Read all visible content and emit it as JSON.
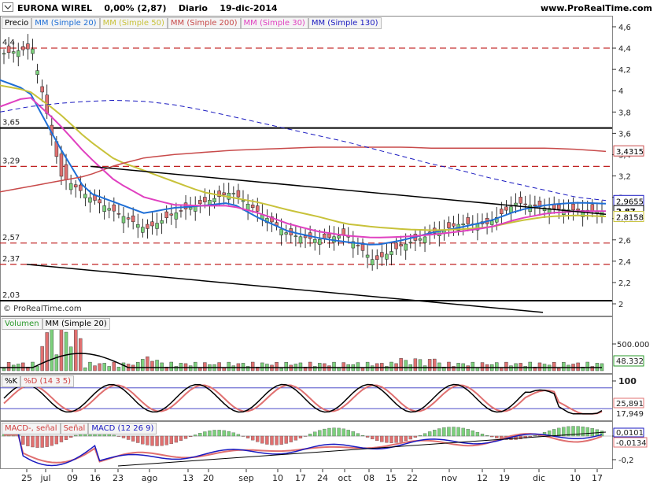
{
  "header": {
    "symbol": "EURONA WIREL",
    "change": "0,00% (2,87)",
    "period": "Diario",
    "date": "19-dic-2014",
    "site": "www.ProRealTime.com"
  },
  "copyright": "© ProRealTime.com",
  "price_panel": {
    "legend": [
      "Precio",
      "MM (Simple 20)",
      "MM (Simple 50)",
      "MM (Simple 200)",
      "MM (Simple 30)",
      "MM (Simple 130)"
    ],
    "legend_colors": [
      "#000000",
      "#1f6fd6",
      "#c8c23a",
      "#c84a4a",
      "#e040c0",
      "#1a1ac0"
    ],
    "y_ticks": [
      "4,6",
      "4,4",
      "4,2",
      "4",
      "3,8",
      "3,6",
      "3,4",
      "3,2",
      "3",
      "2,8",
      "2,6",
      "2,4",
      "2,2",
      "2"
    ],
    "y_tick_values": [
      4.6,
      4.4,
      4.2,
      4.0,
      3.8,
      3.6,
      3.4,
      3.2,
      3.0,
      2.8,
      2.6,
      2.4,
      2.2,
      2.0
    ],
    "level_labels": [
      "4,4",
      "3,65",
      "3,29",
      "2,57",
      "2,37",
      "2,03"
    ],
    "levels": [
      4.4,
      3.65,
      3.29,
      2.57,
      2.37,
      2.03
    ],
    "right_labels": [
      "3,4315",
      "2,9655",
      "2,87",
      "2,8158"
    ],
    "right_values": [
      3.4315,
      2.9655,
      2.87,
      2.8158
    ]
  },
  "volume_panel": {
    "legend": [
      "Volumen",
      "MM (Simple 20)"
    ],
    "y_ticks": [
      "500.000"
    ],
    "last_label": "48.332"
  },
  "stoch_panel": {
    "legend": [
      "%K",
      "%D (14 3 5)"
    ],
    "y_ticks": [
      "100"
    ],
    "labels": [
      "25,891",
      "17,949"
    ]
  },
  "macd_panel": {
    "legend": [
      "MACD-, señal",
      "Señal",
      "MACD (12 26 9)"
    ],
    "y_ticks": [
      "0",
      "-0,2"
    ],
    "labels": [
      "0,0101",
      "-0,0134"
    ]
  },
  "x_axis": {
    "labels": [
      "25",
      "jul",
      "09",
      "16",
      "23",
      "ago",
      "13",
      "20",
      "sep",
      "10",
      "17",
      "24",
      "oct",
      "08",
      "15",
      "22",
      "nov",
      "12",
      "19",
      "dic",
      "10",
      "17"
    ]
  },
  "chart_data": {
    "type": "candlestick",
    "title": "EURONA WIREL",
    "period": "Diario",
    "ylim": [
      1.95,
      4.7
    ],
    "x": [
      "25",
      "jul",
      "09",
      "16",
      "23",
      "ago",
      "13",
      "20",
      "sep",
      "10",
      "17",
      "24",
      "oct",
      "08",
      "15",
      "22",
      "nov",
      "12",
      "19",
      "dic",
      "10",
      "17"
    ],
    "close_approx": [
      4.35,
      4.4,
      3.2,
      3.0,
      2.85,
      2.7,
      2.85,
      2.95,
      3.05,
      2.85,
      2.65,
      2.6,
      2.65,
      2.4,
      2.55,
      2.65,
      2.75,
      2.75,
      2.95,
      2.9,
      2.88,
      2.87
    ],
    "series": [
      {
        "name": "MM (Simple 20)",
        "values": [
          4.1,
          4.0,
          3.5,
          3.05,
          2.95,
          2.85,
          2.9,
          2.92,
          2.95,
          2.8,
          2.68,
          2.62,
          2.58,
          2.55,
          2.6,
          2.67,
          2.72,
          2.78,
          2.88,
          2.93,
          2.95,
          2.94
        ]
      },
      {
        "name": "MM (Simple 50)",
        "values": [
          4.05,
          4.0,
          3.8,
          3.55,
          3.35,
          3.25,
          3.15,
          3.05,
          3.0,
          2.95,
          2.88,
          2.82,
          2.75,
          2.72,
          2.7,
          2.69,
          2.7,
          2.72,
          2.78,
          2.82,
          2.83,
          2.82
        ]
      },
      {
        "name": "MM (Simple 200)",
        "values": [
          3.05,
          3.1,
          3.15,
          3.2,
          3.3,
          3.37,
          3.4,
          3.42,
          3.44,
          3.45,
          3.46,
          3.47,
          3.47,
          3.47,
          3.47,
          3.46,
          3.46,
          3.46,
          3.46,
          3.46,
          3.45,
          3.43
        ]
      },
      {
        "name": "MM (Simple 30)",
        "values": [
          3.85,
          3.95,
          3.7,
          3.4,
          3.15,
          3.0,
          2.93,
          2.92,
          2.92,
          2.85,
          2.75,
          2.68,
          2.64,
          2.62,
          2.63,
          2.65,
          2.68,
          2.72,
          2.8,
          2.85,
          2.87,
          2.87
        ]
      },
      {
        "name": "MM (Simple 130)",
        "values": [
          3.8,
          3.85,
          3.88,
          3.9,
          3.91,
          3.9,
          3.87,
          3.82,
          3.76,
          3.7,
          3.64,
          3.58,
          3.52,
          3.45,
          3.38,
          3.31,
          3.25,
          3.18,
          3.12,
          3.06,
          3.0,
          2.97
        ]
      }
    ]
  }
}
